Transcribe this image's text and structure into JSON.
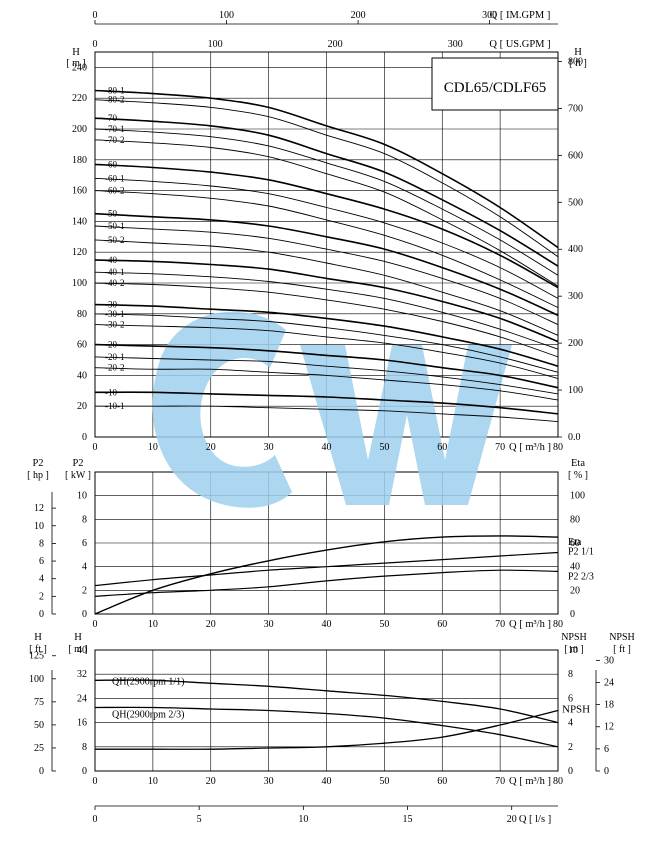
{
  "chart_data": [
    {
      "type": "line",
      "panel": "head",
      "title": "CDL65/CDLF65",
      "xlabel": "Q [ m³/h ]",
      "ylabel_left_unit": "H",
      "ylabel_left": "[ m ]",
      "ylabel_right_unit": "H",
      "ylabel_right": "[ ft ]",
      "top_axis_1_label": "Q [ IM.GPM ]",
      "top_axis_2_label": "Q [ US.GPM ]",
      "xlim": [
        0,
        80
      ],
      "ylim": [
        0,
        240
      ],
      "x_ticks": [
        "0",
        "10",
        "20",
        "30",
        "40",
        "50",
        "60",
        "70",
        "80"
      ],
      "y_ticks": [
        "0",
        "20",
        "40",
        "60",
        "80",
        "100",
        "120",
        "140",
        "160",
        "180",
        "200",
        "220",
        "240"
      ],
      "right_ticks": [
        "0.0",
        "100",
        "200",
        "300",
        "400",
        "500",
        "600",
        "700",
        "800"
      ],
      "top_im_ticks": [
        "0",
        "100",
        "200",
        "300"
      ],
      "top_us_ticks": [
        "0",
        "100",
        "200",
        "300"
      ],
      "x": [
        0,
        10,
        20,
        30,
        40,
        50,
        60,
        70,
        80
      ],
      "series": [
        {
          "name": "-80-1",
          "values": [
            225,
            223,
            220,
            214,
            202,
            190,
            171,
            149,
            123
          ],
          "bold": true
        },
        {
          "name": "-80-2",
          "values": [
            219,
            217,
            214,
            208,
            196,
            184,
            165,
            143,
            117
          ],
          "bold": false
        },
        {
          "name": "-70",
          "values": [
            207,
            205,
            202,
            196,
            184,
            172,
            154,
            134,
            111
          ],
          "bold": true
        },
        {
          "name": "-70-1",
          "values": [
            200,
            198,
            195,
            189,
            178,
            166,
            148,
            128,
            105
          ],
          "bold": false
        },
        {
          "name": "-70-2",
          "values": [
            193,
            191,
            188,
            182,
            171,
            159,
            141,
            121,
            98
          ],
          "bold": false
        },
        {
          "name": "-60",
          "values": [
            177,
            175,
            172,
            167,
            158,
            148,
            135,
            118,
            97
          ],
          "bold": true
        },
        {
          "name": "-60-1",
          "values": [
            168,
            166,
            163,
            158,
            149,
            139,
            126,
            110,
            90
          ],
          "bold": false
        },
        {
          "name": "-60-2",
          "values": [
            160,
            158,
            155,
            150,
            141,
            131,
            118,
            102,
            84
          ],
          "bold": false
        },
        {
          "name": "-50",
          "values": [
            145,
            143,
            141,
            137,
            130,
            122,
            110,
            96,
            79
          ],
          "bold": true
        },
        {
          "name": "-50-1",
          "values": [
            137,
            135,
            133,
            129,
            122,
            114,
            103,
            90,
            73
          ],
          "bold": false
        },
        {
          "name": "-50-2",
          "values": [
            128,
            126,
            124,
            120,
            113,
            105,
            94,
            82,
            66
          ],
          "bold": false
        },
        {
          "name": "-40",
          "values": [
            115,
            114,
            112,
            109,
            103,
            97,
            88,
            77,
            62
          ],
          "bold": true
        },
        {
          "name": "-40-1",
          "values": [
            107,
            106,
            104,
            101,
            96,
            90,
            81,
            70,
            57
          ],
          "bold": false
        },
        {
          "name": "-40-2",
          "values": [
            100,
            99,
            97,
            94,
            89,
            83,
            75,
            65,
            52
          ],
          "bold": false
        },
        {
          "name": "-30",
          "values": [
            86,
            85,
            83,
            81,
            77,
            72,
            65,
            57,
            46
          ],
          "bold": true
        },
        {
          "name": "-30-1",
          "values": [
            80,
            79,
            77,
            75,
            71,
            66,
            60,
            52,
            42
          ],
          "bold": false
        },
        {
          "name": "-30-2",
          "values": [
            73,
            72,
            71,
            69,
            65,
            61,
            55,
            48,
            38
          ],
          "bold": false
        },
        {
          "name": "-20",
          "values": [
            60,
            59,
            58,
            56,
            53,
            50,
            45,
            40,
            32
          ],
          "bold": true
        },
        {
          "name": "-20-1",
          "values": [
            52,
            51,
            50,
            49,
            46,
            43,
            39,
            34,
            28
          ],
          "bold": false
        },
        {
          "name": "-20-2",
          "values": [
            45,
            44,
            44,
            42,
            40,
            37,
            34,
            30,
            24
          ],
          "bold": false
        },
        {
          "name": "-10",
          "values": [
            29,
            29,
            28,
            27,
            26,
            24,
            22,
            19,
            15
          ],
          "bold": true
        },
        {
          "name": "-10-1",
          "values": [
            20,
            20,
            20,
            19,
            18,
            17,
            15,
            13,
            10
          ],
          "bold": false
        }
      ],
      "grid": true
    },
    {
      "type": "line",
      "panel": "power",
      "xlabel": "Q [ m³/h ]",
      "ylabel_left_unit": "P2",
      "ylabel_left": "[ kW ]",
      "ylabel_outer_unit": "P2",
      "ylabel_outer": "[ hp ]",
      "ylabel_right_unit": "Eta",
      "ylabel_right": "[ % ]",
      "xlim": [
        0,
        80
      ],
      "ylim": [
        0,
        12
      ],
      "x_ticks": [
        "0",
        "10",
        "20",
        "30",
        "40",
        "50",
        "60",
        "70",
        "80"
      ],
      "y_ticks": [
        "0",
        "2",
        "4",
        "6",
        "8",
        "10"
      ],
      "hp_ticks": [
        "0",
        "2",
        "4",
        "6",
        "8",
        "10",
        "12"
      ],
      "eta_ticks": [
        "0",
        "20",
        "40",
        "60",
        "80",
        "100"
      ],
      "x": [
        0,
        10,
        20,
        30,
        40,
        50,
        60,
        70,
        80
      ],
      "series": [
        {
          "name": "Eta",
          "axis": "eta_percent",
          "values": [
            0,
            20,
            34,
            45,
            54,
            61,
            65,
            66,
            65
          ]
        },
        {
          "name": "P2  1/1",
          "axis": "kw",
          "values": [
            2.4,
            2.9,
            3.3,
            3.7,
            4.0,
            4.3,
            4.6,
            4.9,
            5.2
          ]
        },
        {
          "name": "P2  2/3",
          "axis": "kw",
          "values": [
            1.5,
            1.8,
            2.0,
            2.3,
            2.8,
            3.2,
            3.5,
            3.7,
            3.6
          ]
        }
      ],
      "grid": true
    },
    {
      "type": "line",
      "panel": "qh_npsh",
      "xlabel": "Q [ m³/h ]",
      "ylabel_left_unit": "H",
      "ylabel_left": "[ m ]",
      "ylabel_outer_unit": "H",
      "ylabel_outer": "[ ft ]",
      "ylabel_right_unit": "NPSH",
      "ylabel_right": "[ m ]",
      "ylabel_right_outer_unit": "NPSH",
      "ylabel_right_outer": "[ ft ]",
      "xlim": [
        0,
        80
      ],
      "ylim": [
        0,
        40
      ],
      "x_ticks": [
        "0",
        "10",
        "20",
        "30",
        "40",
        "50",
        "60",
        "70",
        "80"
      ],
      "y_ticks": [
        "0",
        "8",
        "16",
        "24",
        "32",
        "40"
      ],
      "ft_ticks": [
        "0",
        "25",
        "50",
        "75",
        "100",
        "125"
      ],
      "npsh_m_ticks": [
        "0",
        "2",
        "4",
        "6",
        "8",
        "10"
      ],
      "npsh_ft_ticks": [
        "0",
        "6",
        "12",
        "18",
        "24",
        "30"
      ],
      "x": [
        0,
        10,
        20,
        30,
        40,
        50,
        60,
        70,
        80
      ],
      "series": [
        {
          "name": "QH(2900rpm 1/1)",
          "axis": "m",
          "values": [
            30,
            30,
            29,
            28,
            26.5,
            25,
            23,
            20.5,
            16
          ]
        },
        {
          "name": "QH(2900rpm 2/3)",
          "axis": "m",
          "values": [
            21,
            21,
            20.5,
            20,
            19,
            17.5,
            15,
            12,
            8
          ]
        },
        {
          "name": "NPSH",
          "axis": "npsh_m",
          "values": [
            1.8,
            1.8,
            1.8,
            1.9,
            2.0,
            2.3,
            2.8,
            3.8,
            5.0
          ]
        }
      ],
      "grid": true
    }
  ],
  "bottom_axis": {
    "label": "Q [ l/s ]",
    "ticks": [
      "0",
      "5",
      "10",
      "15",
      "20"
    ]
  },
  "watermark": {
    "text": "CW",
    "color": "#9fd0ee"
  }
}
